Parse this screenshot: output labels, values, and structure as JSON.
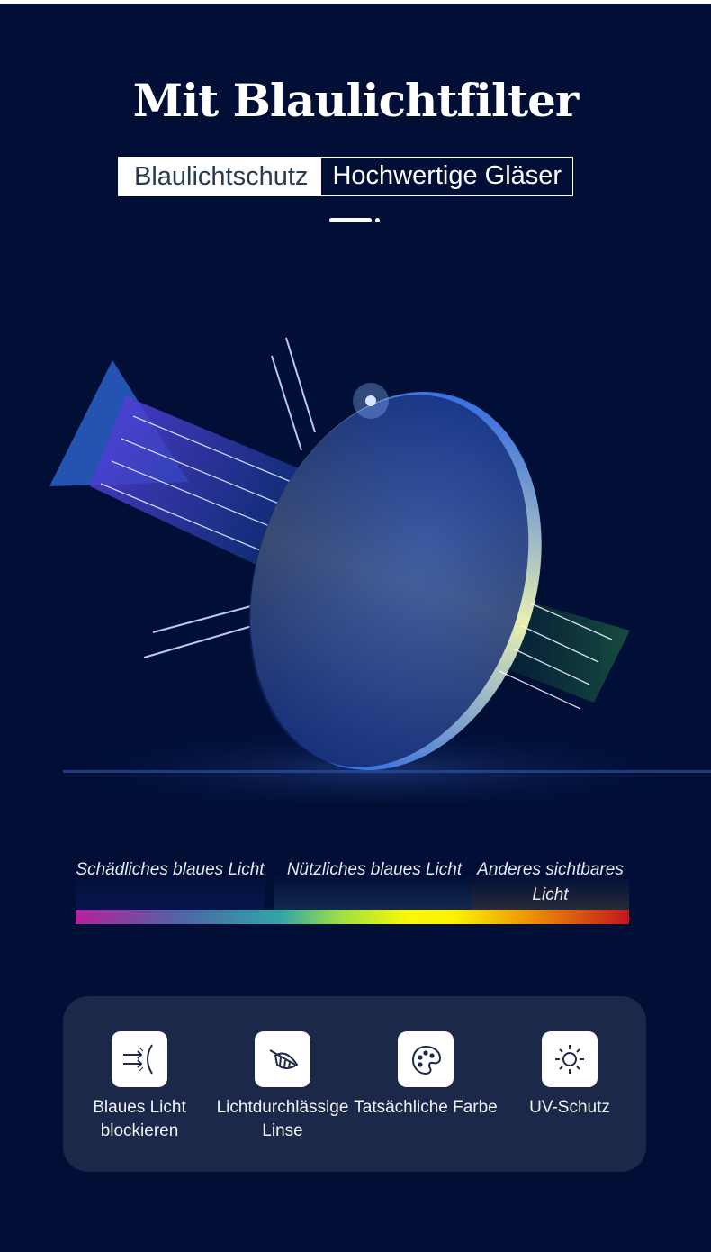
{
  "header": {
    "title": "Mit Blaulichtfilter",
    "tags": [
      "Blaulichtschutz",
      "Hochwertige Gläser"
    ]
  },
  "spectrum": {
    "labels": [
      "Schädliches blaues Licht",
      "Nützliches blaues Licht",
      "Anderes sichtbares Licht"
    ]
  },
  "features": [
    {
      "icon": "blue-light-block-icon",
      "label": "Blaues Licht blockieren"
    },
    {
      "icon": "leaf-icon",
      "label": "Lichtdurchlässige Linse"
    },
    {
      "icon": "palette-icon",
      "label": "Tatsächliche Farbe"
    },
    {
      "icon": "sun-icon",
      "label": "UV-Schutz"
    }
  ],
  "colors": {
    "background": "#010f37",
    "panel": "#1b284a",
    "icon": "#1b2a4a"
  }
}
